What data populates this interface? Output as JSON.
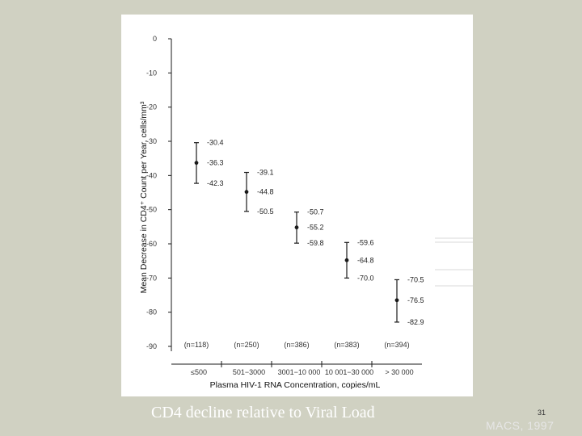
{
  "caption": "CD4 decline relative to Viral Load",
  "slide_number": "31",
  "source_note": "MACS, 1997",
  "colors": {
    "background": "#d0d1c2",
    "panel": "#ffffff",
    "ink": "#1a1a1a",
    "grid": "#cccccc"
  },
  "chart_data": {
    "type": "scatter",
    "subtype": "point-with-error-bars",
    "ylabel": "Mean Decrease in CD4⁺ Count per Year, cells/mm³",
    "xlabel": "Plasma HIV-1 RNA Concentration, copies/mL",
    "ylim": [
      -90,
      0
    ],
    "yticks": [
      0,
      -10,
      -20,
      -30,
      -40,
      -50,
      -60,
      -70,
      -80,
      -90
    ],
    "categories": [
      "≤500",
      "501−3000",
      "3001−10 000",
      "10 001−30 000",
      "> 30 000"
    ],
    "n_labels": [
      "(n=118)",
      "(n=250)",
      "(n=386)",
      "(n=383)",
      "(n=394)"
    ],
    "series": [
      {
        "values": [
          -36.3,
          -44.8,
          -55.2,
          -64.8,
          -76.5
        ],
        "upper": [
          -30.4,
          -39.1,
          -50.7,
          -59.6,
          -70.5
        ],
        "lower": [
          -42.3,
          -50.5,
          -59.8,
          -70.0,
          -82.9
        ],
        "value_labels": [
          "-36.3",
          "-44.8",
          "-55.2",
          "-64.8",
          "-76.5"
        ],
        "upper_labels": [
          "-30.4",
          "-39.1",
          "-50.7",
          "-59.6",
          "-70.5"
        ],
        "lower_labels": [
          "-42.3",
          "-50.5",
          "-59.8",
          "-70.0",
          "-82.9"
        ]
      }
    ],
    "grid": false,
    "legend": "none"
  }
}
